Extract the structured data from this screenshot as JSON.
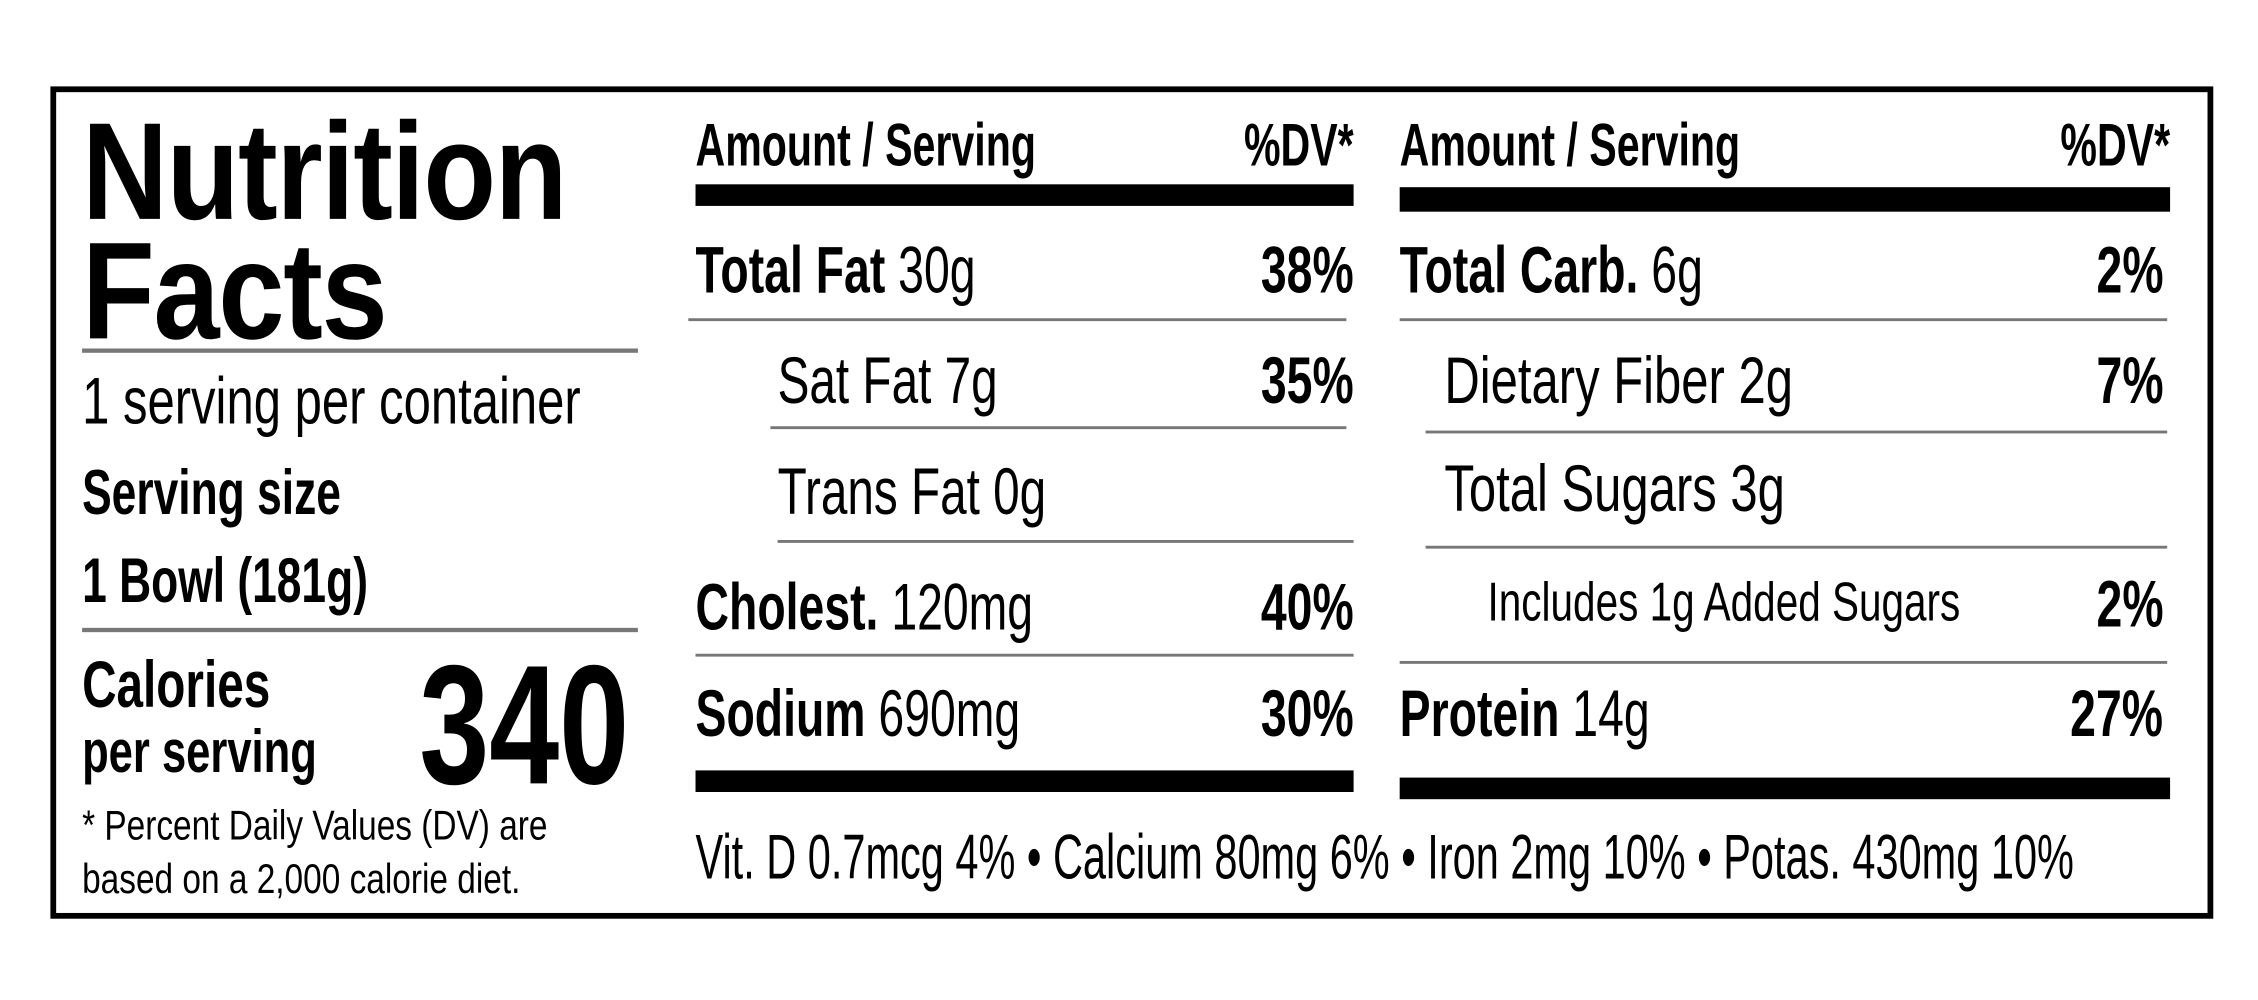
{
  "title_line1": "Nutrition",
  "title_line2": "Facts",
  "servings_per_container": "1 serving per container",
  "serving_size_label": "Serving size",
  "serving_size_value": "1 Bowl (181g)",
  "calories_label_1": "Calories",
  "calories_label_2": "per serving",
  "calories_value": "340",
  "footnote_1": "* Percent Daily Values (DV) are",
  "footnote_2": "based on a  2,000 calorie diet.",
  "left_column": {
    "header_amount": "Amount / Serving",
    "header_dv": "%DV*",
    "rows": [
      {
        "name": "Total Fat",
        "amount": " 30g",
        "dv": "38%"
      },
      {
        "name": "Sat Fat 7g",
        "amount": "",
        "dv": "35%"
      },
      {
        "name": "Trans Fat 0g",
        "amount": "",
        "dv": ""
      },
      {
        "name": "Cholest.",
        "amount": " 120mg",
        "dv": "40%"
      },
      {
        "name": "Sodium",
        "amount": " 690mg",
        "dv": "30%"
      }
    ]
  },
  "right_column": {
    "header_amount": "Amount / Serving",
    "header_dv": "%DV*",
    "rows": [
      {
        "name": "Total Carb.",
        "amount": " 6g",
        "dv": "2%"
      },
      {
        "name": "Dietary Fiber 2g",
        "amount": "",
        "dv": "7%"
      },
      {
        "name": "Total Sugars 3g",
        "amount": "",
        "dv": ""
      },
      {
        "name": "Includes 1g Added Sugars",
        "amount": "",
        "dv": "2%"
      },
      {
        "name": "Protein",
        "amount": " 14g",
        "dv": "27%"
      }
    ]
  },
  "vitamins_line": "Vit. D 0.7mcg 4% • Calcium 80mg 6% • Iron 2mg 10% • Potas. 430mg 10%"
}
